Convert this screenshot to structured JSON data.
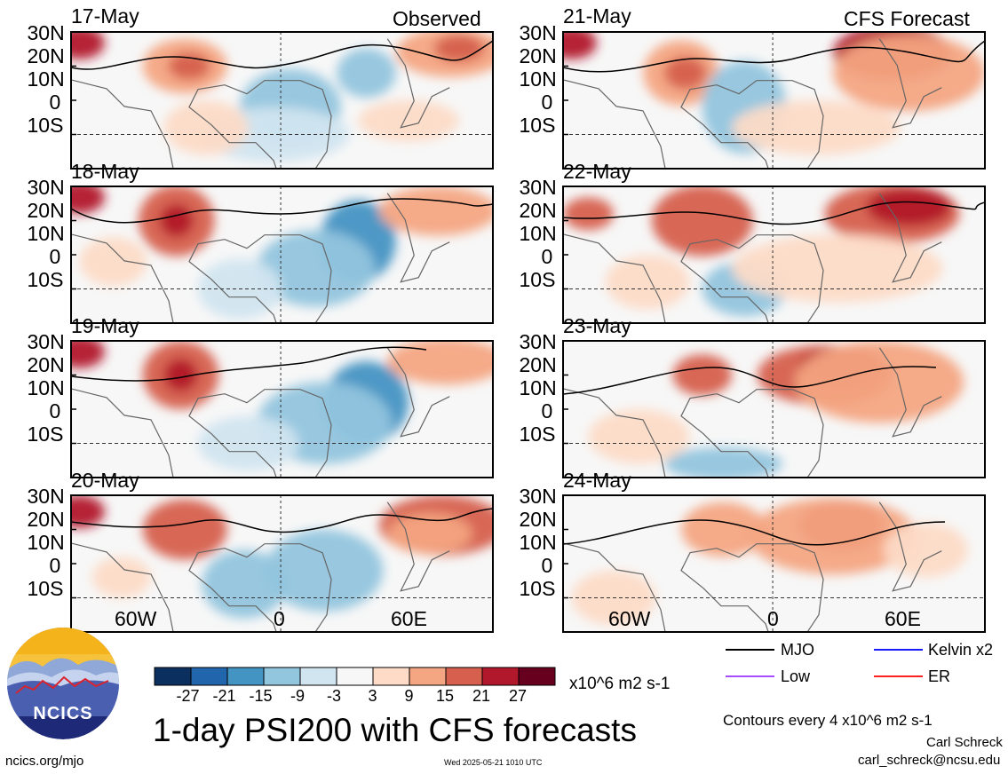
{
  "headers": {
    "observed": "Observed",
    "forecast": "CFS Forecast"
  },
  "panels": [
    {
      "date": "17-May",
      "group": "observed"
    },
    {
      "date": "18-May",
      "group": "observed"
    },
    {
      "date": "19-May",
      "group": "observed"
    },
    {
      "date": "20-May",
      "group": "observed"
    },
    {
      "date": "21-May",
      "group": "forecast"
    },
    {
      "date": "22-May",
      "group": "forecast"
    },
    {
      "date": "23-May",
      "group": "forecast"
    },
    {
      "date": "24-May",
      "group": "forecast"
    }
  ],
  "lat_labels": [
    "30N",
    "20N",
    "10N",
    "0",
    "10S"
  ],
  "lon_labels": [
    "60W",
    "0",
    "60E"
  ],
  "colorbar": {
    "ticks": [
      "-27",
      "-21",
      "-15",
      "-9",
      "-3",
      "3",
      "9",
      "15",
      "21",
      "27"
    ],
    "colors": [
      "#0b2f5e",
      "#2166ac",
      "#4393c3",
      "#92c5de",
      "#d1e5f0",
      "#f7f7f7",
      "#fddbc7",
      "#f4a582",
      "#d6604d",
      "#b2182b",
      "#67001f"
    ],
    "units": "x10^6 m2 s-1"
  },
  "legend": [
    {
      "label": "MJO",
      "color": "#000000"
    },
    {
      "label": "Kelvin x2",
      "color": "#1a1aff"
    },
    {
      "label": "Low",
      "color": "#a64dff"
    },
    {
      "label": "ER",
      "color": "#ff2020"
    }
  ],
  "title": "1-day PSI200 with CFS forecasts",
  "contour_note": "Contours every 4 x10^6 m2 s-1",
  "author": "Carl Schreck",
  "email": "carl_schreck@ncsu.edu",
  "site": "ncics.org/mjo",
  "timestamp": "Wed 2025-05-21 1010 UTC",
  "logo_text": "NCICS",
  "chart_data": {
    "type": "heatmap",
    "variable": "PSI200",
    "units": "x10^6 m2 s-1",
    "lat_ticks": [
      "30N",
      "20N",
      "10N",
      "0",
      "10S"
    ],
    "lon_ticks": [
      "60W",
      "0",
      "60E"
    ],
    "color_levels": [
      -27,
      -21,
      -15,
      -9,
      -3,
      3,
      9,
      15,
      21,
      27
    ],
    "contour_interval": 4,
    "panels": [
      "17-May",
      "18-May",
      "19-May",
      "20-May",
      "21-May",
      "22-May",
      "23-May",
      "24-May"
    ]
  }
}
